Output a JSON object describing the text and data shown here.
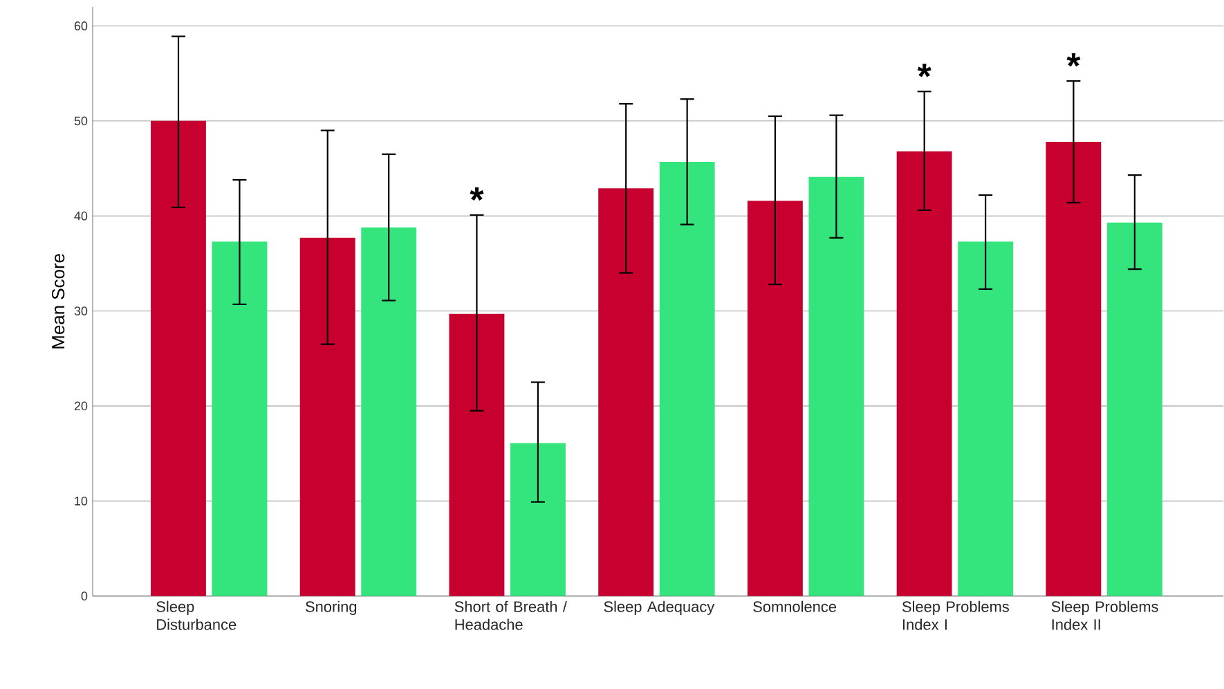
{
  "chart_data": {
    "type": "bar",
    "ylabel": "Mean Score",
    "categories": [
      "Sleep Disturbance",
      "Snoring",
      "Short of Breath / Headache",
      "Sleep Adequacy",
      "Somnolence",
      "Sleep Problems Index I",
      "Sleep Problems Index II"
    ],
    "series": [
      {
        "color": "#c8002f",
        "value_labels": [
          null,
          null,
          "*",
          null,
          null,
          "*",
          "*"
        ],
        "values": [
          50,
          37.7,
          29.7,
          42.9,
          41.6,
          46.8,
          47.8
        ],
        "errors": [
          [
            40.9,
            58.9
          ],
          [
            26.5,
            49.0
          ],
          [
            19.5,
            40.1
          ],
          [
            34.0,
            51.8
          ],
          [
            32.8,
            50.5
          ],
          [
            40.6,
            53.1
          ],
          [
            41.4,
            54.2
          ]
        ]
      },
      {
        "color": "#34e57e",
        "values": [
          37.3,
          38.8,
          16.1,
          45.7,
          44.1,
          37.3,
          39.3
        ],
        "errors": [
          [
            30.7,
            43.8
          ],
          [
            31.1,
            46.5
          ],
          [
            9.9,
            22.5
          ],
          [
            39.1,
            52.3
          ],
          [
            37.7,
            50.6
          ],
          [
            32.3,
            42.2
          ],
          [
            34.4,
            44.3
          ]
        ]
      }
    ],
    "ylim": [
      0,
      62
    ],
    "yticks": [
      0,
      10,
      20,
      30,
      40,
      50,
      60
    ],
    "grid": "y"
  }
}
